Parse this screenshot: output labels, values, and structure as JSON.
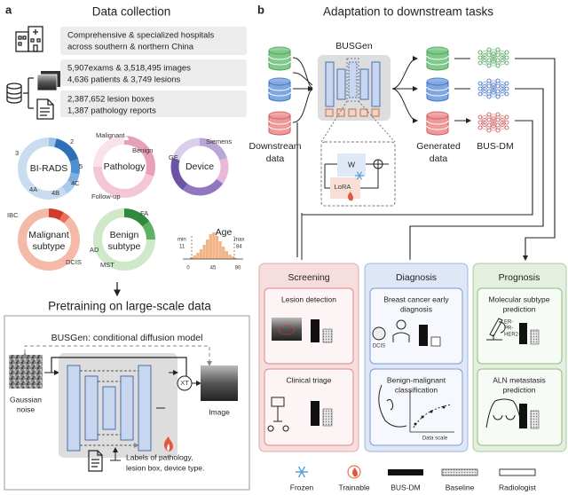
{
  "panel_a": {
    "label": "a",
    "title": "Data collection",
    "stats": [
      [
        "Comprehensive & specialized hospitals",
        "across southern & northern China"
      ],
      [
        "5,907exams & 3,518,495 images",
        "4,636 patients & 3,749 lesions"
      ],
      [
        "2,387,652 lesion boxes",
        "1,387 pathology reports"
      ]
    ],
    "donuts": {
      "birads": {
        "title": "BI-RADS",
        "labels": [
          "2",
          "3",
          "4A",
          "4B",
          "4C",
          "5"
        ]
      },
      "pathology": {
        "title": "Pathology",
        "labels": [
          "Malignant",
          "Benign",
          "Follow-up"
        ]
      },
      "device": {
        "title": "Device",
        "labels": [
          "Siemens",
          "GE"
        ]
      },
      "malignant": {
        "title": [
          "Malignant",
          "subtype"
        ],
        "labels": [
          "IBC",
          "DCIS"
        ]
      },
      "benign": {
        "title": [
          "Benign",
          "subtype"
        ],
        "labels": [
          "FA",
          "AD",
          "MST"
        ]
      }
    },
    "age": {
      "title": "Age",
      "min_label": "min",
      "min": 11,
      "max_label": "max",
      "max": 84,
      "ticks": [
        0,
        45,
        90
      ]
    },
    "pretraining": {
      "title": "Pretraining on large-scale data",
      "model": "BUSGen: conditional diffusion model",
      "input": [
        "Gaussian",
        "noise"
      ],
      "output": "Image",
      "xt": "XT",
      "conditions": [
        "Labels of pathology,",
        "lesion box, device type."
      ]
    }
  },
  "panel_b": {
    "label": "b",
    "title": "Adaptation to downstream tasks",
    "model": "BUSGen",
    "downstream": [
      "Downstream",
      "data"
    ],
    "generated": [
      "Generated",
      "data"
    ],
    "busdm": "BUS-DM",
    "w": "W",
    "lora": "LoRA",
    "tasks": [
      {
        "title": "Screening",
        "items": [
          {
            "title": [
              "Lesion detection"
            ]
          },
          {
            "title": [
              "Clinical triage"
            ]
          }
        ]
      },
      {
        "title": "Diagnosis",
        "items": [
          {
            "title": [
              "Breast cancer early",
              "diagnosis"
            ],
            "tag": "DCIS"
          },
          {
            "title": [
              "Benign-malignant",
              "classification"
            ],
            "axis": "Data scale"
          }
        ]
      },
      {
        "title": "Prognosis",
        "items": [
          {
            "title": [
              "Molecular subtype",
              "prediction"
            ],
            "tags": [
              "ER-",
              "PR-",
              "HER2-"
            ]
          },
          {
            "title": [
              "ALN metastasis",
              "prediction"
            ]
          }
        ]
      }
    ],
    "legend": [
      "Frozen",
      "Trainable",
      "BUS-DM",
      "Baseline",
      "Radiologist"
    ]
  }
}
